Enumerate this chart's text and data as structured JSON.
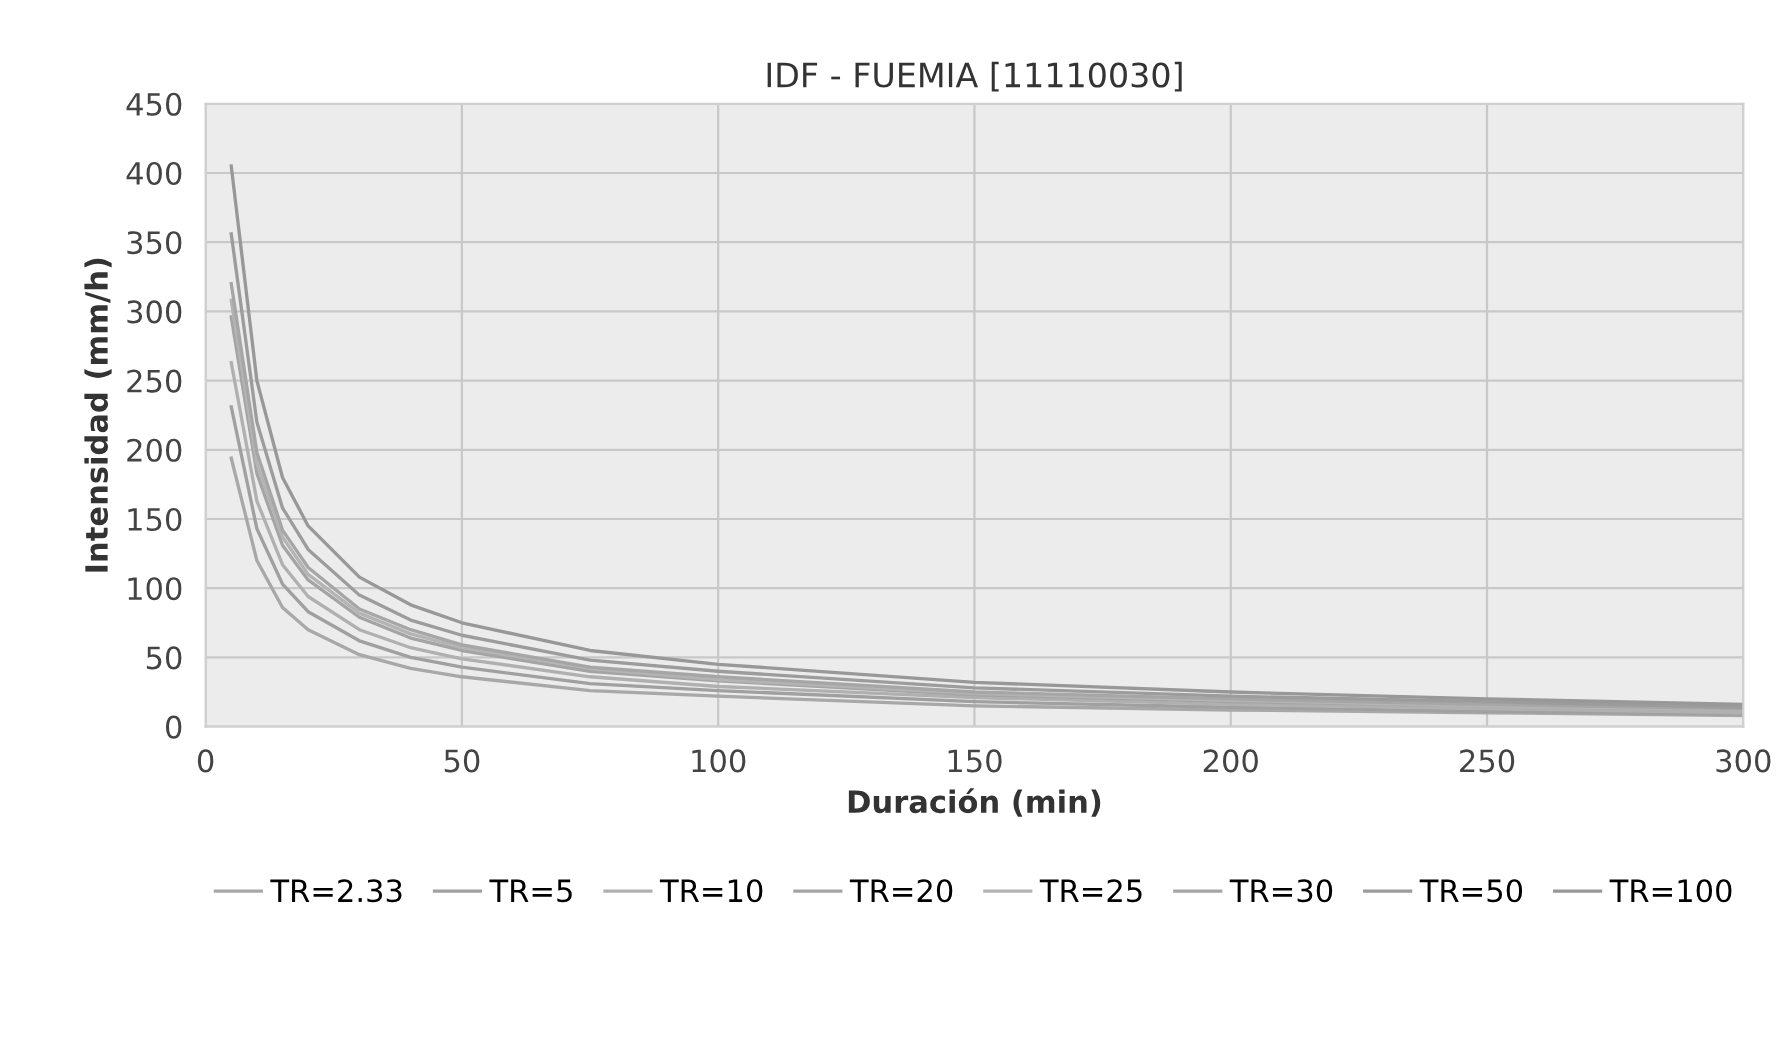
{
  "chart_data": {
    "type": "line",
    "title": "IDF - FUEMIA [11110030]",
    "xlabel": "Duración (min)",
    "ylabel": "Intensidad (mm/h)",
    "x": [
      5,
      10,
      15,
      20,
      30,
      40,
      50,
      75,
      100,
      150,
      200,
      250,
      300
    ],
    "series": [
      {
        "name": "TR=2.33",
        "color": "#a8a8a8",
        "values": [
          194,
          120,
          86,
          70,
          52,
          42,
          36,
          26,
          22,
          15,
          12,
          10,
          8
        ]
      },
      {
        "name": "TR=5",
        "color": "#a0a0a0",
        "values": [
          231,
          143,
          103,
          83,
          62,
          50,
          43,
          31,
          26,
          18,
          14,
          11,
          9
        ]
      },
      {
        "name": "TR=10",
        "color": "#b0b0b0",
        "values": [
          263,
          163,
          117,
          94,
          70,
          57,
          49,
          36,
          29,
          21,
          16,
          13,
          10
        ]
      },
      {
        "name": "TR=20",
        "color": "#a4a4a4",
        "values": [
          296,
          183,
          131,
          106,
          79,
          64,
          55,
          40,
          33,
          23,
          18,
          15,
          12
        ]
      },
      {
        "name": "TR=25",
        "color": "#b4b4b4",
        "values": [
          308,
          190,
          137,
          110,
          82,
          67,
          57,
          42,
          34,
          24,
          19,
          15,
          12
        ]
      },
      {
        "name": "TR=30",
        "color": "#a6a6a6",
        "values": [
          320,
          198,
          142,
          115,
          85,
          70,
          59,
          43,
          36,
          25,
          20,
          16,
          13
        ]
      },
      {
        "name": "TR=50",
        "color": "#9c9c9c",
        "values": [
          356,
          220,
          158,
          128,
          95,
          77,
          66,
          48,
          40,
          28,
          22,
          18,
          14
        ]
      },
      {
        "name": "TR=100",
        "color": "#989898",
        "values": [
          405,
          250,
          180,
          145,
          108,
          88,
          75,
          55,
          45,
          32,
          25,
          20,
          16
        ]
      }
    ],
    "xlim": [
      0,
      300
    ],
    "xticks": [
      0,
      50,
      100,
      150,
      200,
      250,
      300
    ],
    "ylim": [
      0,
      450
    ],
    "yticks": [
      0,
      50,
      100,
      150,
      200,
      250,
      300,
      350,
      400,
      450
    ],
    "grid": true,
    "legend": "bottom",
    "marker": "none",
    "line_style": "solid"
  }
}
